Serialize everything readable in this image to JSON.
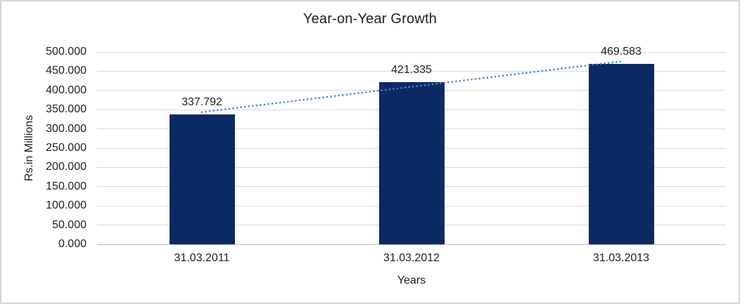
{
  "chart_data": {
    "type": "bar",
    "title": "Year-on-Year Growth",
    "xlabel": "Years",
    "ylabel": "Rs.in Millions",
    "categories": [
      "31.03.2011",
      "31.03.2012",
      "31.03.2013"
    ],
    "values": [
      337.792,
      421.335,
      469.583
    ],
    "data_labels": [
      "337.792",
      "421.335",
      "469.583"
    ],
    "y_ticks": [
      "0.000",
      "50.000",
      "100.000",
      "150.000",
      "200.000",
      "250.000",
      "300.000",
      "350.000",
      "400.000",
      "450.000",
      "500.000"
    ],
    "ylim": [
      0,
      500
    ],
    "y_tick_step": 50,
    "grid": true,
    "legend": "none",
    "trendline": {
      "type": "linear",
      "style": "dotted"
    },
    "colors": {
      "bar": "#0a2a64",
      "trendline": "#4a86c8",
      "gridline": "#d9d9d9",
      "axis_line": "#bdbdbd",
      "text": "#1f1f1f",
      "border": "#d6d6d6",
      "background": "#ffffff"
    }
  }
}
